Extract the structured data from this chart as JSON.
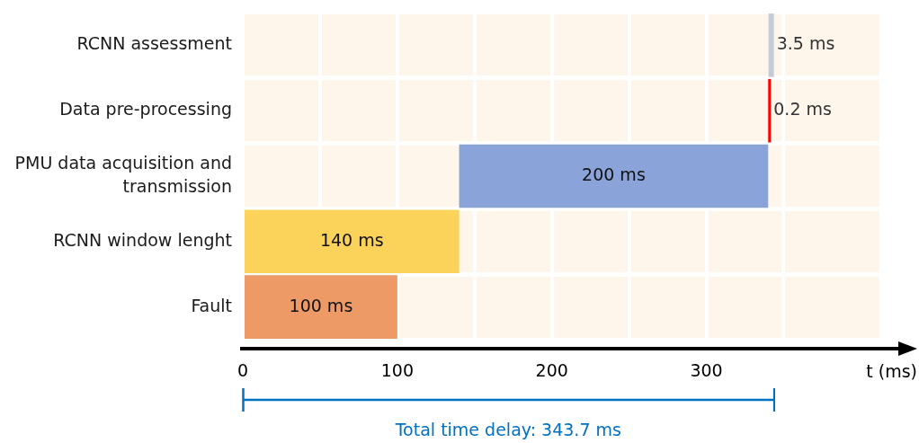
{
  "chart_data": {
    "type": "bar",
    "orientation": "horizontal",
    "categories": [
      "RCNN assessment",
      "Data pre-processing",
      "PMU data acquisition and transmission",
      "RCNN window lenght",
      "Fault"
    ],
    "base": [
      340.2,
      340,
      140,
      0,
      0
    ],
    "values": [
      3.5,
      0.2,
      200,
      140,
      100
    ],
    "colors": [
      "#c5ccd8",
      "#ff0000",
      "#8aa3d9",
      "#fcd35a",
      "#ed9a66"
    ],
    "value_labels": [
      "3.5 ms",
      "0.2 ms",
      "200 ms",
      "140 ms",
      "100 ms"
    ],
    "xlabel": "t (ms)",
    "xlim": [
      0,
      412
    ],
    "xticks": [
      0,
      {
        "value": 50,
        "label": null
      },
      100,
      {
        "value": 150,
        "label": null
      },
      200,
      {
        "value": 250,
        "label": null
      },
      300,
      {
        "value": 350,
        "label": null
      }
    ],
    "grid": true,
    "annotations": [
      "Total time delay: 343.7 ms"
    ]
  }
}
